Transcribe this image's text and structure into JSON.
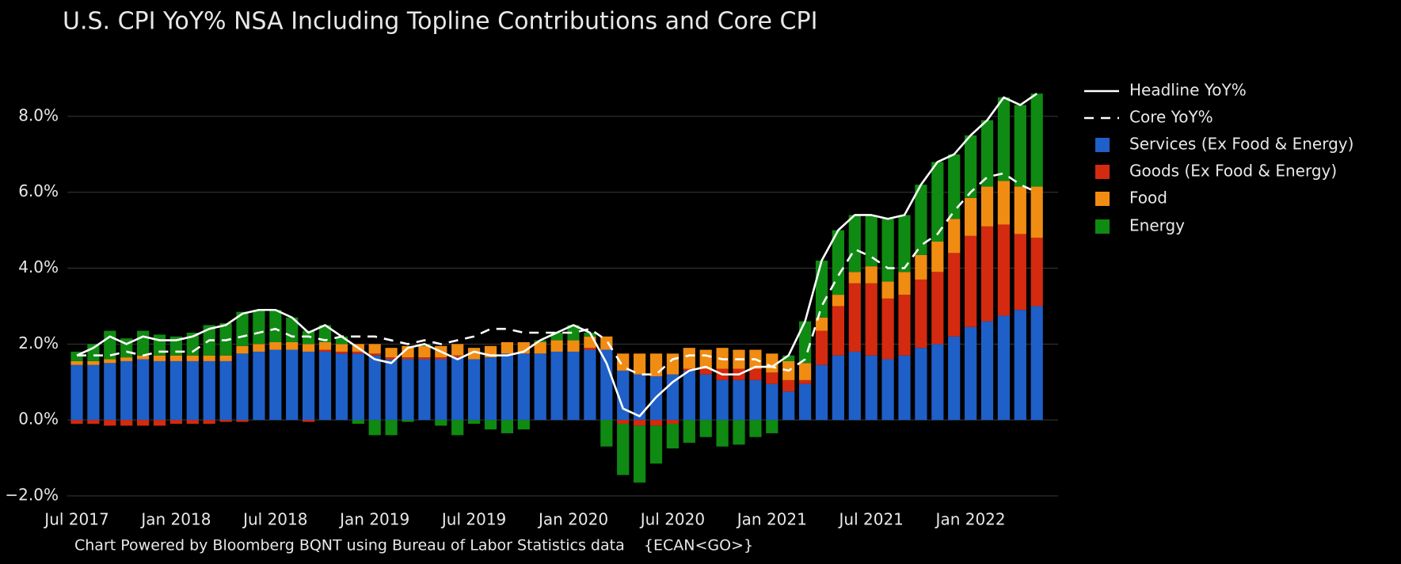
{
  "chart_data": {
    "type": "bar",
    "title": "U.S. CPI YoY% NSA Including Topline Contributions and Core CPI",
    "source": "Chart Powered by Bloomberg BQNT using Bureau of Labor Statistics data    {ECAN<GO>}",
    "categories": [
      "Jul 2017",
      null,
      null,
      null,
      null,
      null,
      "Jan 2018",
      null,
      null,
      null,
      null,
      null,
      "Jul 2018",
      null,
      null,
      null,
      null,
      null,
      "Jan 2019",
      null,
      null,
      null,
      null,
      null,
      "Jul 2019",
      null,
      null,
      null,
      null,
      null,
      "Jan 2020",
      null,
      null,
      null,
      null,
      null,
      "Jul 2020",
      null,
      null,
      null,
      null,
      null,
      "Jan 2021",
      null,
      null,
      null,
      null,
      null,
      "Jul 2021",
      null,
      null,
      null,
      null,
      null,
      "Jan 2022",
      null,
      null,
      null,
      null
    ],
    "series": [
      {
        "name": "Services (Ex Food & Energy)",
        "color": "#1f5fc8",
        "values": [
          1.45,
          1.45,
          1.5,
          1.55,
          1.6,
          1.55,
          1.55,
          1.55,
          1.55,
          1.55,
          1.75,
          1.8,
          1.85,
          1.85,
          1.8,
          1.8,
          1.75,
          1.75,
          1.7,
          1.6,
          1.6,
          1.6,
          1.6,
          1.65,
          1.6,
          1.65,
          1.75,
          1.75,
          1.75,
          1.8,
          1.8,
          1.85,
          1.85,
          1.3,
          1.2,
          1.15,
          1.2,
          1.3,
          1.2,
          1.05,
          1.05,
          1.05,
          0.95,
          0.75,
          0.95,
          1.45,
          1.7,
          1.8,
          1.7,
          1.6,
          1.7,
          1.9,
          2.0,
          2.2,
          2.45,
          2.6,
          2.75,
          2.9,
          3.0
        ]
      },
      {
        "name": "Goods (Ex Food & Energy)",
        "color": "#d42a10",
        "values": [
          -0.1,
          -0.1,
          -0.15,
          -0.15,
          -0.15,
          -0.15,
          -0.1,
          -0.1,
          -0.1,
          -0.05,
          -0.05,
          0,
          0,
          0,
          -0.05,
          0.05,
          0.05,
          0.05,
          0.05,
          0.05,
          0.05,
          0.05,
          0.05,
          0.05,
          0,
          0,
          0,
          0,
          0,
          0,
          0,
          0.05,
          0,
          -0.1,
          -0.15,
          -0.15,
          -0.1,
          0.05,
          0.15,
          0.3,
          0.3,
          0.3,
          0.3,
          0.3,
          0.1,
          0.9,
          1.3,
          1.8,
          1.9,
          1.6,
          1.6,
          1.8,
          1.9,
          2.2,
          2.4,
          2.5,
          2.4,
          2.0,
          1.8
        ]
      },
      {
        "name": "Food",
        "color": "#f08c12",
        "values": [
          0.1,
          0.1,
          0.1,
          0.1,
          0.1,
          0.15,
          0.15,
          0.15,
          0.15,
          0.15,
          0.2,
          0.2,
          0.2,
          0.2,
          0.2,
          0.2,
          0.2,
          0.2,
          0.25,
          0.25,
          0.3,
          0.3,
          0.3,
          0.3,
          0.3,
          0.3,
          0.3,
          0.3,
          0.3,
          0.3,
          0.3,
          0.3,
          0.35,
          0.45,
          0.55,
          0.6,
          0.55,
          0.55,
          0.5,
          0.55,
          0.5,
          0.5,
          0.5,
          0.5,
          0.45,
          0.35,
          0.3,
          0.3,
          0.45,
          0.45,
          0.6,
          0.65,
          0.8,
          0.9,
          1.0,
          1.05,
          1.15,
          1.25,
          1.35
        ]
      },
      {
        "name": "Energy",
        "color": "#0f8a12",
        "values": [
          0.25,
          0.45,
          0.75,
          0.5,
          0.65,
          0.55,
          0.5,
          0.6,
          0.8,
          0.85,
          0.9,
          0.9,
          0.85,
          0.65,
          0.35,
          0.45,
          0.2,
          -0.1,
          -0.4,
          -0.4,
          -0.05,
          0.05,
          -0.15,
          -0.4,
          -0.1,
          -0.25,
          -0.35,
          -0.25,
          0.05,
          0.2,
          0.4,
          0.1,
          -0.7,
          -1.35,
          -1.5,
          -1.0,
          -0.65,
          -0.6,
          -0.45,
          -0.7,
          -0.65,
          -0.45,
          -0.35,
          0.15,
          1.1,
          1.5,
          1.7,
          1.5,
          1.35,
          1.65,
          1.5,
          1.85,
          2.1,
          1.7,
          1.65,
          1.75,
          2.2,
          2.15,
          2.45
        ]
      }
    ],
    "lines": [
      {
        "name": "Headline YoY%",
        "color": "#ffffff",
        "dashed": false,
        "values": [
          1.7,
          1.9,
          2.2,
          2.0,
          2.2,
          2.1,
          2.1,
          2.2,
          2.4,
          2.5,
          2.8,
          2.9,
          2.9,
          2.7,
          2.3,
          2.5,
          2.2,
          1.9,
          1.6,
          1.5,
          1.9,
          2.0,
          1.8,
          1.6,
          1.8,
          1.7,
          1.7,
          1.8,
          2.1,
          2.3,
          2.5,
          2.3,
          1.5,
          0.3,
          0.1,
          0.6,
          1.0,
          1.3,
          1.4,
          1.2,
          1.2,
          1.4,
          1.4,
          1.7,
          2.6,
          4.2,
          5.0,
          5.4,
          5.4,
          5.3,
          5.4,
          6.2,
          6.8,
          7.0,
          7.5,
          7.9,
          8.5,
          8.3,
          8.6
        ]
      },
      {
        "name": "Core YoY%",
        "color": "#ffffff",
        "dashed": true,
        "values": [
          1.7,
          1.7,
          1.7,
          1.8,
          1.7,
          1.8,
          1.8,
          1.8,
          2.1,
          2.1,
          2.2,
          2.3,
          2.4,
          2.2,
          2.2,
          2.1,
          2.2,
          2.2,
          2.2,
          2.1,
          2.0,
          2.1,
          2.0,
          2.1,
          2.2,
          2.4,
          2.4,
          2.3,
          2.3,
          2.3,
          2.3,
          2.4,
          2.1,
          1.4,
          1.2,
          1.2,
          1.6,
          1.7,
          1.7,
          1.6,
          1.6,
          1.6,
          1.4,
          1.3,
          1.6,
          3.0,
          3.8,
          4.5,
          4.3,
          4.0,
          4.0,
          4.6,
          4.9,
          5.5,
          6.0,
          6.4,
          6.5,
          6.2,
          6.0
        ]
      }
    ],
    "ylim": [
      -2,
      9
    ],
    "yticks": [
      {
        "value": -2,
        "label": "−2.0%"
      },
      {
        "value": 0,
        "label": "0.0%"
      },
      {
        "value": 2,
        "label": "2.0%"
      },
      {
        "value": 4,
        "label": "4.0%"
      },
      {
        "value": 6,
        "label": "6.0%"
      },
      {
        "value": 8,
        "label": "8.0%"
      }
    ],
    "grid": true,
    "legend": "right"
  }
}
